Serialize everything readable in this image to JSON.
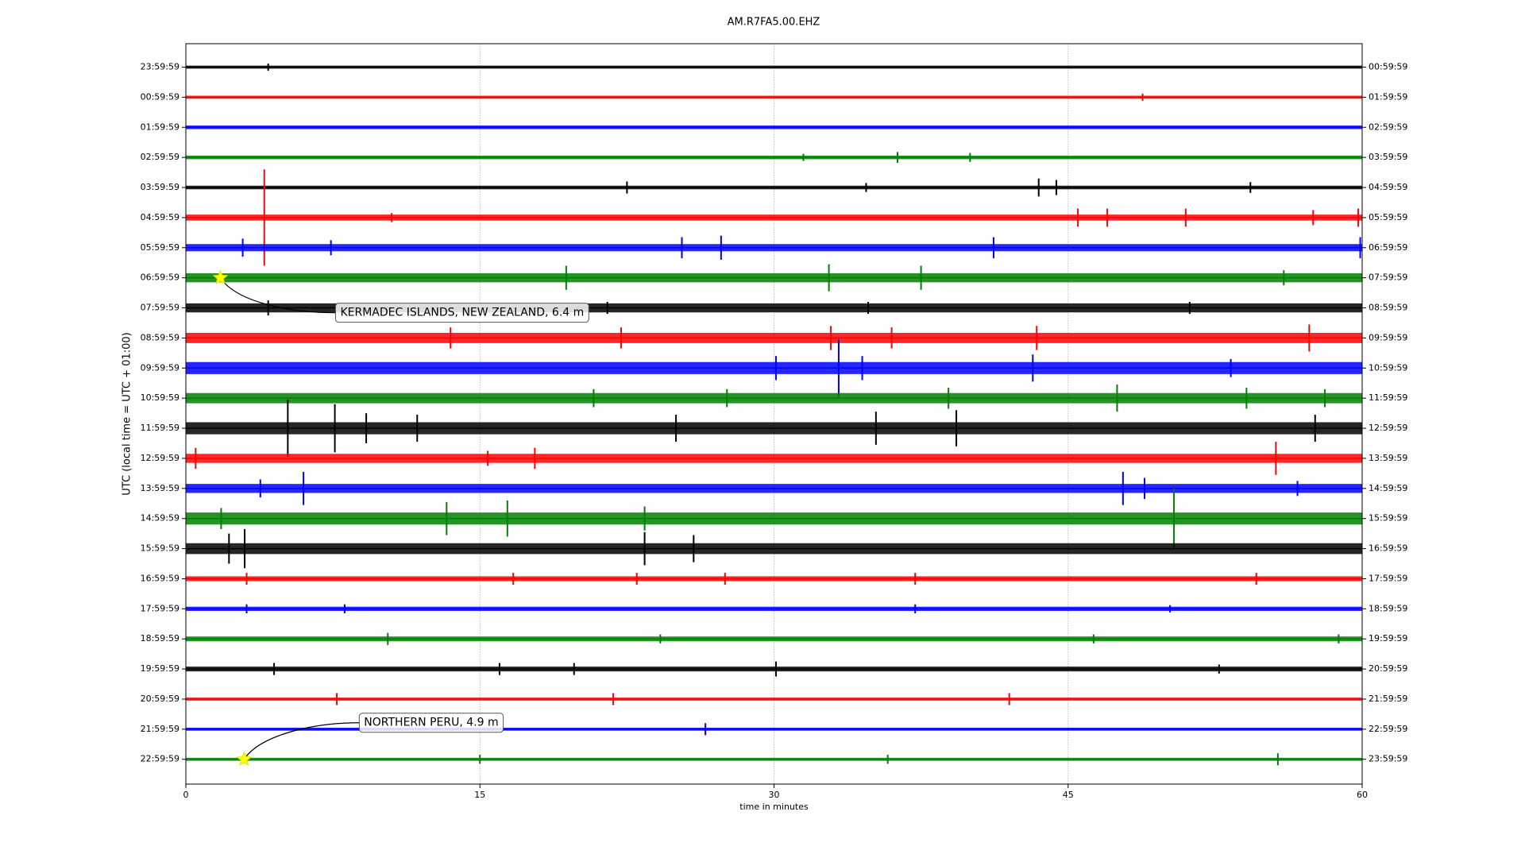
{
  "chart_data": {
    "type": "helicorder",
    "title": "AM.R7FA5.00.EHZ",
    "x_label": "time in minutes",
    "y_label": "UTC (local time = UTC + 01:00)",
    "xlim": [
      0,
      60
    ],
    "xticks": [
      0,
      15,
      30,
      45,
      60
    ],
    "grid": true,
    "row_labels_left": [
      "23:59:59",
      "00:59:59",
      "01:59:59",
      "02:59:59",
      "03:59:59",
      "04:59:59",
      "05:59:59",
      "06:59:59",
      "07:59:59",
      "08:59:59",
      "09:59:59",
      "10:59:59",
      "11:59:59",
      "12:59:59",
      "13:59:59",
      "14:59:59",
      "15:59:59",
      "16:59:59",
      "17:59:59",
      "18:59:59",
      "19:59:59",
      "20:59:59",
      "21:59:59",
      "22:59:59"
    ],
    "row_labels_right": [
      "00:59:59",
      "01:59:59",
      "02:59:59",
      "03:59:59",
      "04:59:59",
      "05:59:59",
      "06:59:59",
      "07:59:59",
      "08:59:59",
      "09:59:59",
      "10:59:59",
      "11:59:59",
      "12:59:59",
      "13:59:59",
      "14:59:59",
      "15:59:59",
      "16:59:59",
      "17:59:59",
      "18:59:59",
      "19:59:59",
      "20:59:59",
      "21:59:59",
      "22:59:59",
      "23:59:59"
    ],
    "traces": [
      {
        "color": "#000000",
        "noise": 0.05,
        "spikes": [
          [
            4.2,
            0.12
          ]
        ]
      },
      {
        "color": "#ff0000",
        "noise": 0.05,
        "spikes": [
          [
            48.8,
            0.12
          ]
        ]
      },
      {
        "color": "#0000ff",
        "noise": 0.06,
        "spikes": []
      },
      {
        "color": "#008000",
        "noise": 0.06,
        "spikes": [
          [
            31.5,
            0.12
          ],
          [
            36.3,
            0.18
          ],
          [
            40,
            0.15
          ]
        ]
      },
      {
        "color": "#000000",
        "noise": 0.06,
        "spikes": [
          [
            22.5,
            0.2
          ],
          [
            34.7,
            0.15
          ],
          [
            43.5,
            0.3
          ],
          [
            44.4,
            0.25
          ],
          [
            54.3,
            0.18
          ]
        ]
      },
      {
        "color": "#ff0000",
        "noise": 0.1,
        "spikes": [
          [
            4.0,
            1.6
          ],
          [
            10.5,
            0.15
          ],
          [
            45.5,
            0.3
          ],
          [
            47,
            0.3
          ],
          [
            51,
            0.3
          ],
          [
            57.5,
            0.25
          ],
          [
            59.8,
            0.3
          ]
        ]
      },
      {
        "color": "#0000ff",
        "noise": 0.12,
        "spikes": [
          [
            2.9,
            0.3
          ],
          [
            7.4,
            0.25
          ],
          [
            25.3,
            0.35
          ],
          [
            27.3,
            0.4
          ],
          [
            41.2,
            0.35
          ],
          [
            59.9,
            0.35
          ]
        ]
      },
      {
        "color": "#008000",
        "noise": 0.15,
        "spikes": [
          [
            19.4,
            0.4
          ],
          [
            32.8,
            0.45
          ],
          [
            37.5,
            0.4
          ],
          [
            56,
            0.25
          ]
        ]
      },
      {
        "color": "#000000",
        "noise": 0.15,
        "spikes": [
          [
            4.2,
            0.25
          ],
          [
            21.5,
            0.2
          ],
          [
            34.8,
            0.2
          ],
          [
            51.2,
            0.2
          ]
        ]
      },
      {
        "color": "#ff0000",
        "noise": 0.17,
        "spikes": [
          [
            13.5,
            0.35
          ],
          [
            22.2,
            0.35
          ],
          [
            32.9,
            0.4
          ],
          [
            36,
            0.35
          ],
          [
            43.4,
            0.4
          ],
          [
            57.3,
            0.45
          ]
        ]
      },
      {
        "color": "#0000ff",
        "noise": 0.2,
        "spikes": [
          [
            30.1,
            0.4
          ],
          [
            33.3,
            0.95
          ],
          [
            34.5,
            0.4
          ],
          [
            43.2,
            0.45
          ],
          [
            53.3,
            0.3
          ]
        ]
      },
      {
        "color": "#008000",
        "noise": 0.17,
        "spikes": [
          [
            20.8,
            0.3
          ],
          [
            27.6,
            0.3
          ],
          [
            38.9,
            0.35
          ],
          [
            47.5,
            0.45
          ],
          [
            54.1,
            0.35
          ],
          [
            58.1,
            0.3
          ]
        ]
      },
      {
        "color": "#000000",
        "noise": 0.2,
        "spikes": [
          [
            5.2,
            0.95
          ],
          [
            7.6,
            0.8
          ],
          [
            9.2,
            0.5
          ],
          [
            11.8,
            0.45
          ],
          [
            25,
            0.45
          ],
          [
            35.2,
            0.55
          ],
          [
            39.3,
            0.6
          ],
          [
            57.6,
            0.45
          ]
        ]
      },
      {
        "color": "#ff0000",
        "noise": 0.15,
        "spikes": [
          [
            0.5,
            0.35
          ],
          [
            15.4,
            0.25
          ],
          [
            17.8,
            0.35
          ],
          [
            55.6,
            0.55
          ]
        ]
      },
      {
        "color": "#0000ff",
        "noise": 0.15,
        "spikes": [
          [
            3.8,
            0.3
          ],
          [
            6,
            0.55
          ],
          [
            47.8,
            0.55
          ],
          [
            48.9,
            0.35
          ],
          [
            56.7,
            0.25
          ]
        ]
      },
      {
        "color": "#008000",
        "noise": 0.2,
        "spikes": [
          [
            1.8,
            0.35
          ],
          [
            13.3,
            0.55
          ],
          [
            16.4,
            0.6
          ],
          [
            23.4,
            0.4
          ],
          [
            50.4,
            1.0
          ]
        ]
      },
      {
        "color": "#000000",
        "noise": 0.18,
        "spikes": [
          [
            2.2,
            0.5
          ],
          [
            3,
            0.65
          ],
          [
            23.4,
            0.55
          ],
          [
            25.9,
            0.45
          ]
        ]
      },
      {
        "color": "#ff0000",
        "noise": 0.08,
        "spikes": [
          [
            3.1,
            0.2
          ],
          [
            16.7,
            0.2
          ],
          [
            23,
            0.2
          ],
          [
            27.5,
            0.2
          ],
          [
            37.2,
            0.2
          ],
          [
            54.6,
            0.2
          ]
        ]
      },
      {
        "color": "#0000ff",
        "noise": 0.07,
        "spikes": [
          [
            3.1,
            0.15
          ],
          [
            8.1,
            0.15
          ],
          [
            37.2,
            0.15
          ],
          [
            50.2,
            0.12
          ]
        ]
      },
      {
        "color": "#008000",
        "noise": 0.08,
        "spikes": [
          [
            10.3,
            0.2
          ],
          [
            24.2,
            0.15
          ],
          [
            46.3,
            0.15
          ],
          [
            58.8,
            0.15
          ]
        ]
      },
      {
        "color": "#000000",
        "noise": 0.08,
        "spikes": [
          [
            4.5,
            0.2
          ],
          [
            16,
            0.2
          ],
          [
            19.8,
            0.2
          ],
          [
            30.1,
            0.25
          ],
          [
            52.7,
            0.15
          ]
        ]
      },
      {
        "color": "#ff0000",
        "noise": 0.05,
        "spikes": [
          [
            7.7,
            0.2
          ],
          [
            21.8,
            0.2
          ],
          [
            42,
            0.2
          ]
        ]
      },
      {
        "color": "#0000ff",
        "noise": 0.05,
        "spikes": [
          [
            26.5,
            0.2
          ]
        ]
      },
      {
        "color": "#008000",
        "noise": 0.05,
        "spikes": [
          [
            15,
            0.15
          ],
          [
            35.8,
            0.15
          ],
          [
            55.7,
            0.2
          ]
        ]
      }
    ],
    "events": [
      {
        "row": 7,
        "x": 1.76,
        "label": "KERMADEC ISLANDS, NEW ZEALAND, 6.4 m"
      },
      {
        "row": 23,
        "x": 2.97,
        "label": "NORTHERN PERU, 4.9 m"
      }
    ]
  }
}
